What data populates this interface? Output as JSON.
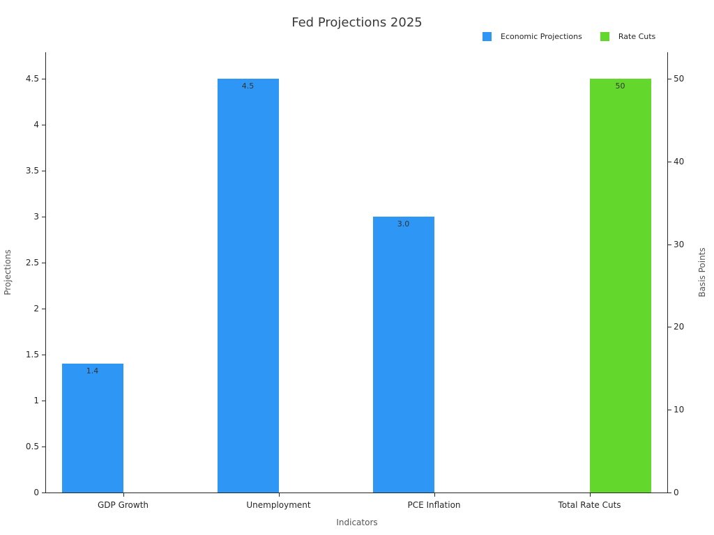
{
  "chart_data": {
    "type": "bar",
    "title": "Fed Projections 2025",
    "xlabel": "Indicators",
    "categories": [
      "GDP Growth",
      "Unemployment",
      "PCE Inflation",
      "Total Rate Cuts"
    ],
    "series": [
      {
        "name": "Economic Projections",
        "axis": "left",
        "color": "#2E96F5",
        "values": [
          1.4,
          4.5,
          3.0,
          null
        ],
        "labels": [
          "1.4",
          "4.5",
          "3.0",
          null
        ]
      },
      {
        "name": "Rate Cuts",
        "axis": "right",
        "color": "#64D72D",
        "values": [
          null,
          null,
          null,
          50
        ],
        "labels": [
          null,
          null,
          null,
          "50"
        ]
      }
    ],
    "left_axis": {
      "label": "Projections",
      "min": 0,
      "max": 4.5,
      "ticks": [
        0,
        0.5,
        1,
        1.5,
        2,
        2.5,
        3,
        3.5,
        4,
        4.5
      ],
      "tick_labels": [
        "0",
        "0.5",
        "1",
        "1.5",
        "2",
        "2.5",
        "3",
        "3.5",
        "4",
        "4.5"
      ]
    },
    "right_axis": {
      "label": "Basis Points",
      "min": 0,
      "max": 50,
      "ticks": [
        0,
        10,
        20,
        30,
        40,
        50
      ],
      "tick_labels": [
        "0",
        "10",
        "20",
        "30",
        "40",
        "50"
      ]
    },
    "grid": false,
    "legend_position": "top-right",
    "bar_value_label_color": "#333333"
  }
}
